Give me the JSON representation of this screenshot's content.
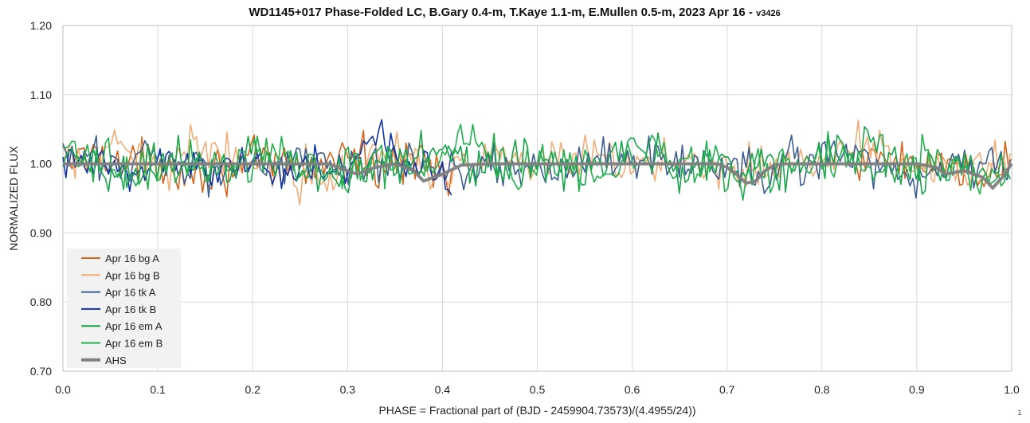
{
  "chart_data": {
    "type": "line",
    "title": "WD1145+017 Phase-Folded LC, B.Gary 0.4-m, T.Kaye 1.1-m, E.Mullen 0.5-m, 2023 Apr 16 - ",
    "title_version": "v3426",
    "xlabel": "PHASE = Fractional part of (BJD - 2459904.73573)/(4.4955/24))",
    "ylabel": "NORMALIZED FLUX",
    "corner_note": "1",
    "xlim": [
      0.0,
      1.0
    ],
    "ylim": [
      0.7,
      1.2
    ],
    "x_ticks": [
      "0.0",
      "0.1",
      "0.2",
      "0.3",
      "0.4",
      "0.5",
      "0.6",
      "0.7",
      "0.8",
      "0.9",
      "1.0"
    ],
    "y_ticks": [
      "0.70",
      "0.80",
      "0.90",
      "1.00",
      "1.10",
      "1.20"
    ],
    "grid": true,
    "legend_position": "bottom-left",
    "series": [
      {
        "name": "Apr 16 bg A",
        "color": "#d4651e",
        "ranges": [
          [
            0.0,
            0.41
          ],
          [
            0.83,
            1.0
          ]
        ],
        "x": [
          0.02,
          0.04,
          0.06,
          0.1,
          0.14,
          0.2,
          0.26,
          0.3,
          0.33,
          0.36,
          0.38,
          0.4,
          0.84,
          0.88,
          0.92,
          0.95,
          0.97,
          0.99
        ],
        "y": [
          1.01,
          1.05,
          0.99,
          1.01,
          0.98,
          1.0,
          0.99,
          1.03,
          0.99,
          1.0,
          1.03,
          0.98,
          1.0,
          1.01,
          0.98,
          0.97,
          0.98,
          0.99
        ]
      },
      {
        "name": "Apr 16 bg B",
        "color": "#f2ae78",
        "ranges": [
          [
            0.0,
            1.0
          ]
        ],
        "x": [
          0.02,
          0.06,
          0.1,
          0.15,
          0.2,
          0.25,
          0.3,
          0.35,
          0.4,
          0.45,
          0.5,
          0.55,
          0.6,
          0.65,
          0.7,
          0.75,
          0.8,
          0.85,
          0.9,
          0.95,
          1.0
        ],
        "y": [
          1.0,
          1.03,
          0.99,
          1.05,
          1.01,
          0.97,
          1.0,
          1.04,
          0.98,
          1.01,
          0.99,
          1.01,
          0.99,
          1.02,
          0.99,
          1.0,
          1.01,
          1.05,
          1.0,
          0.98,
          1.0
        ]
      },
      {
        "name": "Apr 16 tk A",
        "color": "#3d5f8f",
        "ranges": [
          [
            0.0,
            1.0
          ]
        ],
        "x": [
          0.02,
          0.06,
          0.1,
          0.15,
          0.2,
          0.25,
          0.3,
          0.35,
          0.4,
          0.45,
          0.5,
          0.55,
          0.6,
          0.65,
          0.7,
          0.72,
          0.75,
          0.8,
          0.85,
          0.9,
          0.95,
          1.0
        ],
        "y": [
          1.01,
          1.0,
          1.03,
          0.98,
          1.0,
          1.02,
          0.97,
          1.02,
          0.99,
          1.0,
          0.98,
          1.0,
          1.02,
          0.99,
          1.0,
          0.96,
          0.99,
          1.02,
          1.0,
          0.96,
          1.0,
          0.99
        ]
      },
      {
        "name": "Apr 16 tk B",
        "color": "#1034a6",
        "ranges": [
          [
            0.0,
            0.41
          ]
        ],
        "x": [
          0.02,
          0.06,
          0.1,
          0.15,
          0.2,
          0.25,
          0.3,
          0.32,
          0.34,
          0.36,
          0.38,
          0.4,
          0.41
        ],
        "y": [
          1.0,
          0.98,
          1.01,
          0.99,
          1.0,
          0.99,
          0.98,
          1.04,
          1.06,
          0.97,
          1.0,
          0.98,
          0.97
        ]
      },
      {
        "name": "Apr 16 em A",
        "color": "#18a34a",
        "ranges": [
          [
            0.0,
            1.0
          ]
        ],
        "x": [
          0.02,
          0.07,
          0.12,
          0.17,
          0.2,
          0.25,
          0.3,
          0.35,
          0.4,
          0.45,
          0.5,
          0.55,
          0.6,
          0.65,
          0.7,
          0.75,
          0.8,
          0.85,
          0.9,
          0.95,
          1.0
        ],
        "y": [
          1.0,
          0.98,
          1.02,
          0.97,
          1.03,
          0.99,
          0.96,
          1.02,
          1.05,
          0.98,
          1.02,
          0.97,
          1.04,
          0.99,
          1.01,
          0.98,
          1.02,
          1.05,
          0.97,
          0.99,
          0.96
        ]
      },
      {
        "name": "Apr 16 em B",
        "color": "#22b04f",
        "ranges": [
          [
            0.0,
            1.0
          ]
        ],
        "x": [
          0.03,
          0.08,
          0.13,
          0.18,
          0.22,
          0.27,
          0.32,
          0.37,
          0.42,
          0.47,
          0.52,
          0.57,
          0.62,
          0.67,
          0.72,
          0.77,
          0.82,
          0.87,
          0.92,
          0.97,
          1.0
        ],
        "y": [
          1.02,
          0.97,
          1.01,
          0.99,
          1.04,
          0.98,
          1.01,
          0.97,
          1.06,
          0.99,
          1.0,
          0.96,
          1.03,
          1.0,
          0.97,
          1.0,
          1.03,
          0.99,
          1.02,
          0.95,
          0.97
        ]
      },
      {
        "name": "AHS",
        "color": "#808080",
        "ranges": [
          [
            0.0,
            1.0
          ]
        ],
        "x": [
          0.0,
          0.28,
          0.3,
          0.31,
          0.33,
          0.35,
          0.37,
          0.38,
          0.4,
          0.42,
          0.45,
          0.69,
          0.7,
          0.71,
          0.72,
          0.73,
          0.74,
          0.75,
          0.76,
          0.9,
          0.92,
          0.93,
          0.95,
          0.97,
          0.98,
          0.99,
          1.0
        ],
        "y": [
          1.0,
          1.0,
          0.99,
          0.985,
          0.995,
          1.0,
          0.99,
          0.975,
          0.985,
          0.998,
          1.0,
          1.0,
          0.995,
          0.985,
          0.972,
          0.975,
          0.99,
          0.998,
          1.0,
          1.0,
          0.995,
          0.985,
          0.99,
          0.98,
          0.965,
          0.98,
          1.0
        ]
      }
    ]
  }
}
